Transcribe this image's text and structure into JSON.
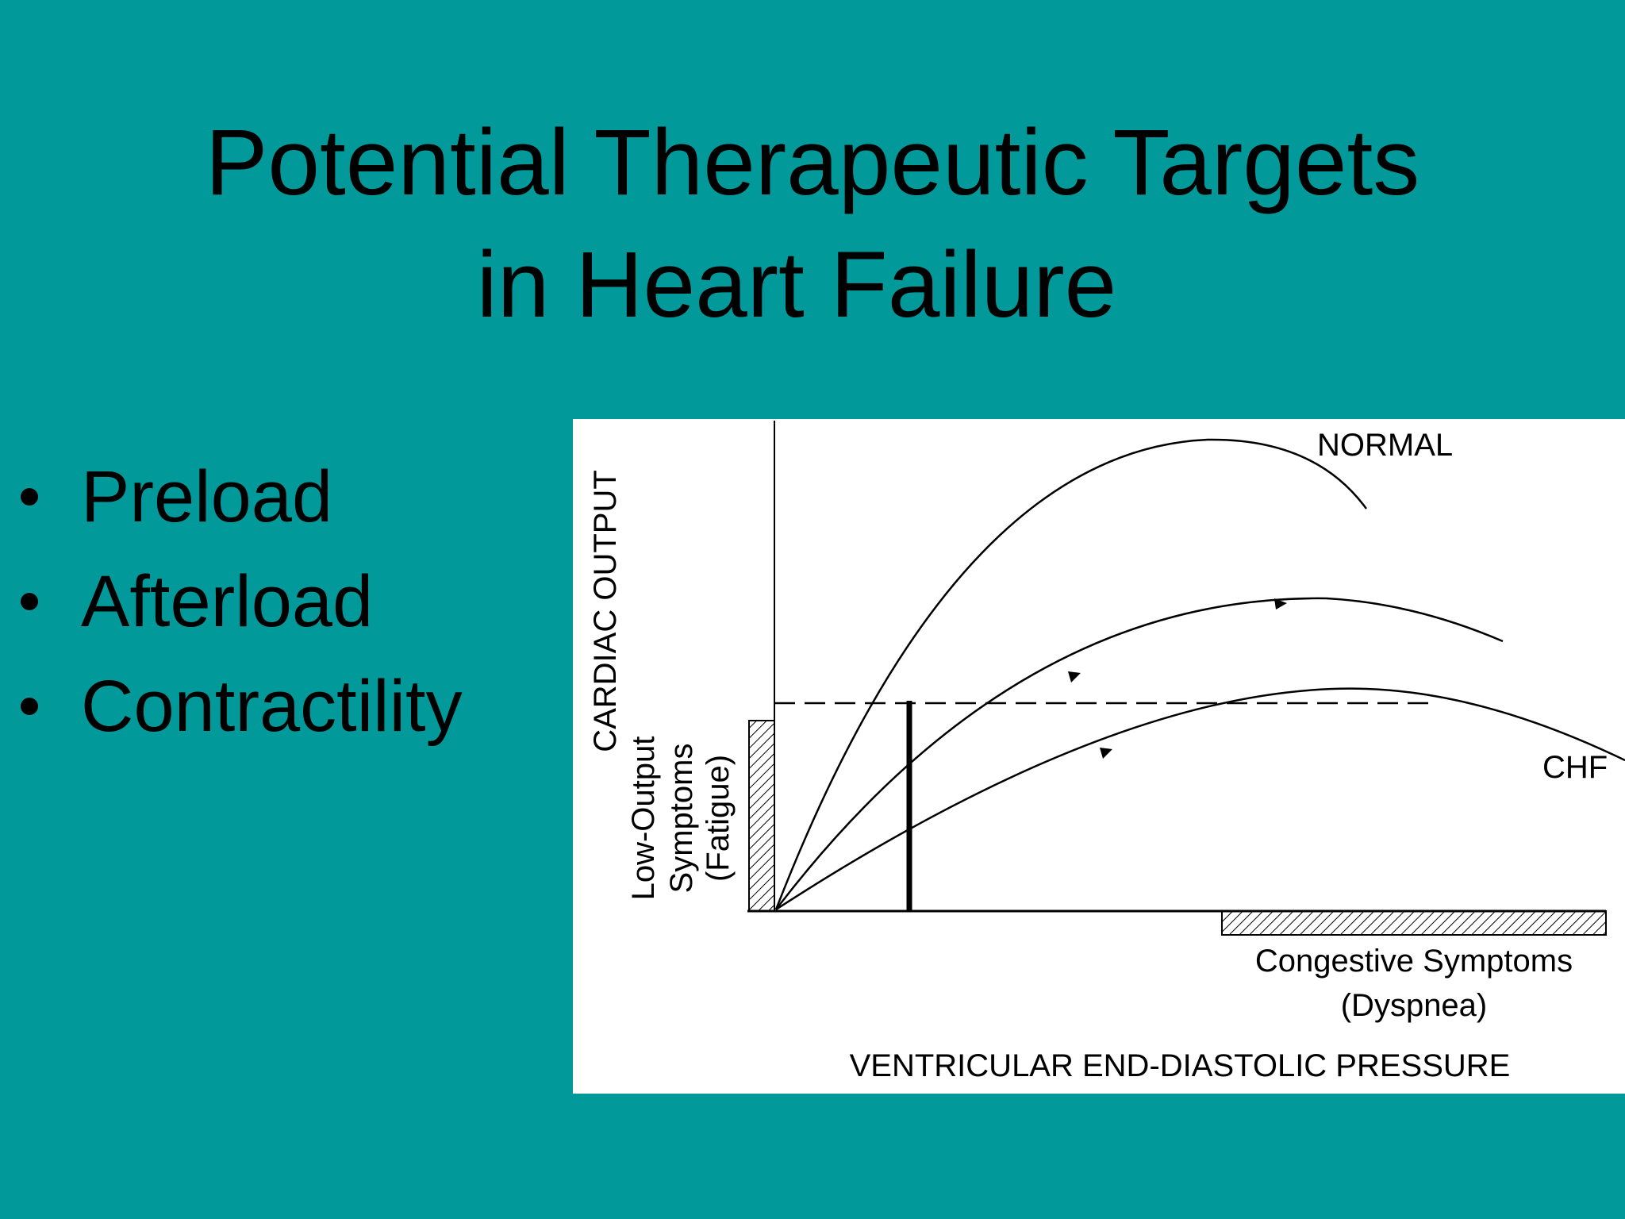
{
  "slide": {
    "title_line1": "Potential Therapeutic Targets",
    "title_line2": "in Heart Failure"
  },
  "bullets": [
    "Preload",
    "Afterload",
    "Contractility"
  ],
  "diagram": {
    "y_axis_label": "CARDIAC OUTPUT",
    "low_output_label_1": "Low-Output",
    "low_output_label_2": "Symptoms",
    "low_output_label_3": "(Fatigue)",
    "curve_normal_label": "NORMAL",
    "curve_chf_label": "CHF",
    "congestive_label_1": "Congestive Symptoms",
    "congestive_label_2": "(Dyspnea)",
    "x_axis_label": "VENTRICULAR END-DIASTOLIC PRESSURE"
  },
  "colors": {
    "background": "#02999b",
    "text": "#000000",
    "panel": "#ffffff"
  }
}
